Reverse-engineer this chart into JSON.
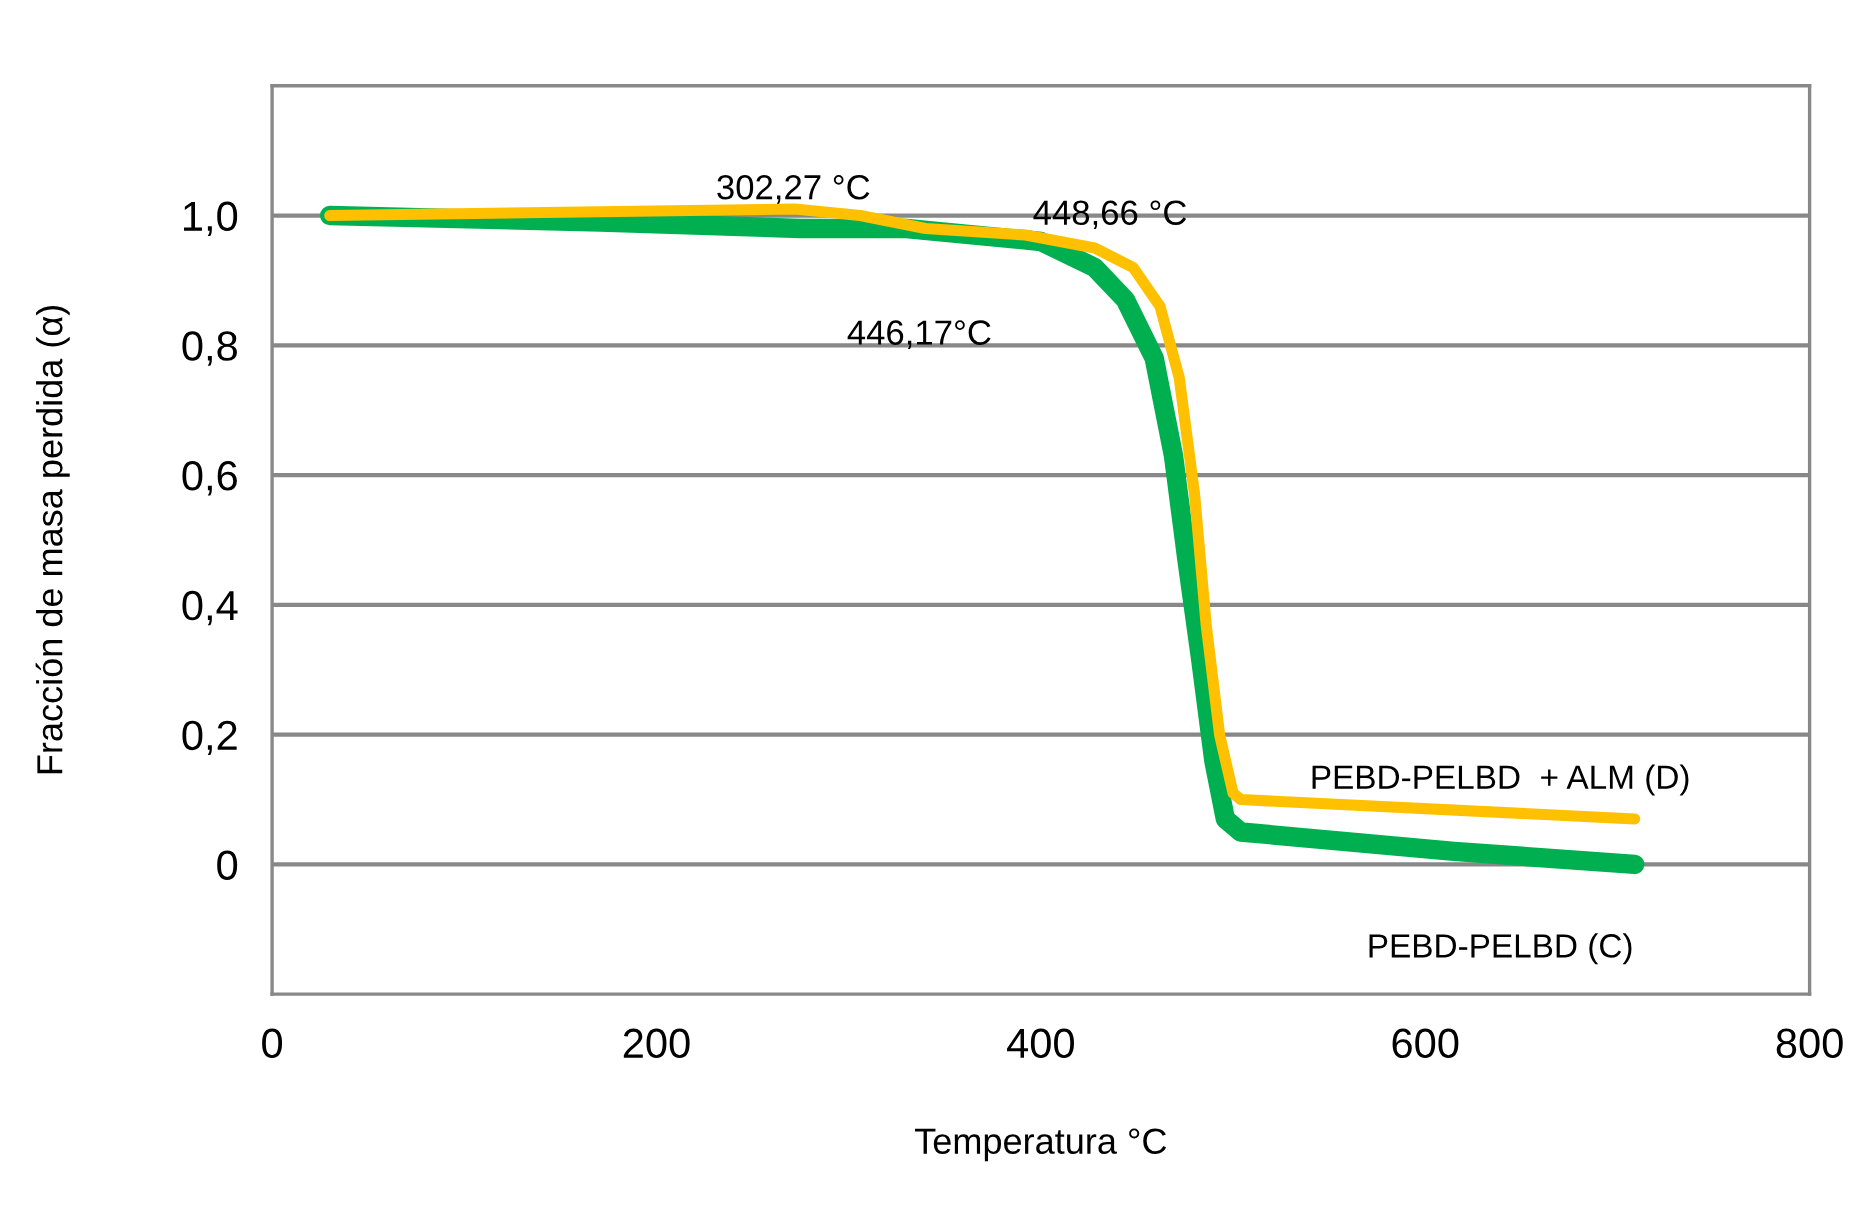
{
  "chart_data": {
    "type": "line",
    "xlabel": "Temperatura °C",
    "ylabel": "Fracción de masa perdida (α)",
    "xlim": [
      0,
      800
    ],
    "xticks": [
      0,
      200,
      400,
      600,
      800
    ],
    "ylim": [
      -0.2,
      1.2
    ],
    "yticks": [
      {
        "value": 0,
        "label": "0"
      },
      {
        "value": 0.2,
        "label": "0,2"
      },
      {
        "value": 0.4,
        "label": "0,4"
      },
      {
        "value": 0.6,
        "label": "0,6"
      },
      {
        "value": 0.8,
        "label": "0,8"
      },
      {
        "value": 1.0,
        "label": "1,0"
      }
    ],
    "grid": "y",
    "legend": false,
    "marker": "none",
    "line_style": "solid",
    "series": [
      {
        "name": "PEBD-PELBD (C)",
        "color": "#00b050",
        "x": [
          30,
          171,
          275,
          330,
          400,
          428,
          444,
          459,
          469,
          476,
          483,
          490,
          496,
          504,
          615,
          709
        ],
        "values": [
          1.0,
          0.99,
          0.98,
          0.98,
          0.96,
          0.92,
          0.87,
          0.78,
          0.63,
          0.47,
          0.32,
          0.16,
          0.07,
          0.05,
          0.02,
          0.0
        ]
      },
      {
        "name": "PEBD-PELBD  + ALM (D)",
        "color": "#ffc000",
        "x": [
          30,
          272,
          306,
          340,
          392,
          428,
          448,
          462,
          472,
          480,
          486,
          493,
          500,
          504,
          709
        ],
        "values": [
          1.0,
          1.01,
          1.0,
          0.98,
          0.97,
          0.95,
          0.92,
          0.86,
          0.75,
          0.57,
          0.37,
          0.2,
          0.11,
          0.1,
          0.07
        ]
      }
    ],
    "annotations": [
      "302,27 °C",
      "448,66 °C",
      "446,17°C"
    ]
  }
}
